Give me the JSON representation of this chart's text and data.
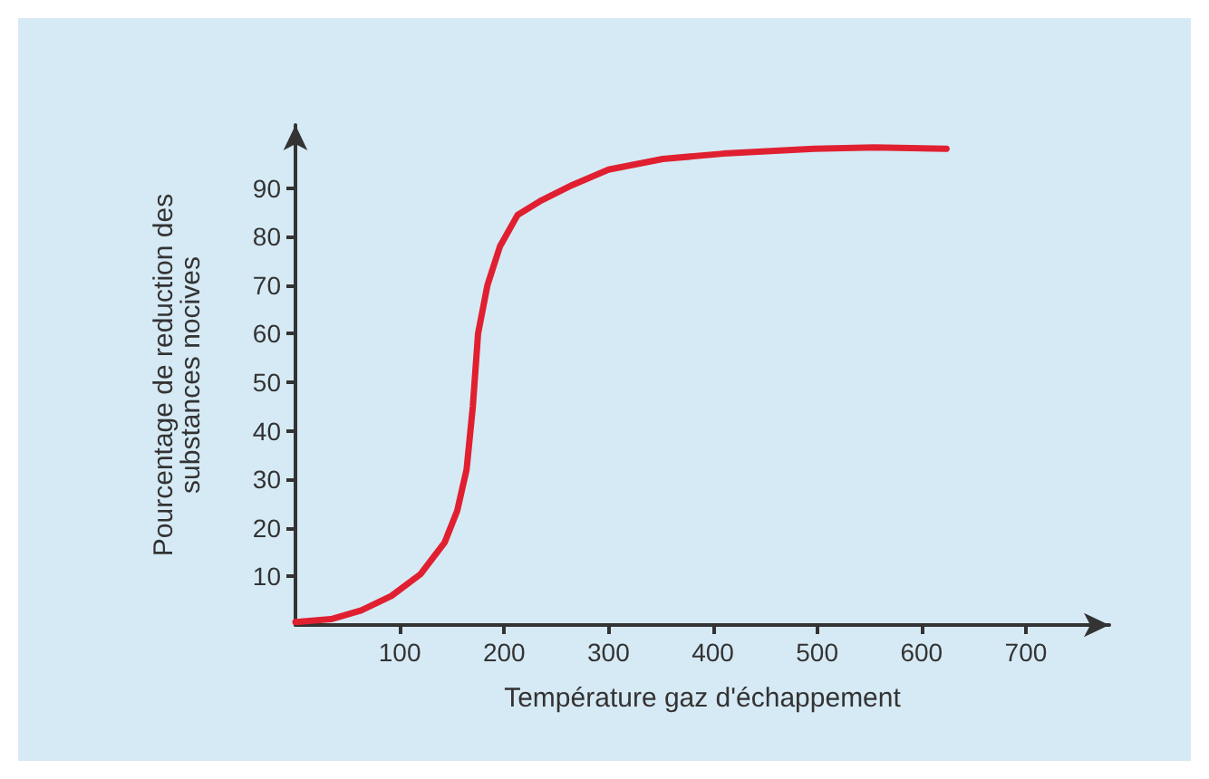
{
  "chart_data": {
    "type": "line",
    "xlabel": "Température gaz d'échappement",
    "ylabel": "Pourcentage de reduction des\nsubstances nocives",
    "x": [
      0,
      34,
      63,
      92,
      120,
      143,
      155,
      164,
      170,
      175,
      184,
      196,
      213,
      236,
      265,
      300,
      352,
      410,
      497,
      555,
      624
    ],
    "series": [
      {
        "color": "#e02030",
        "values": [
          0.6,
          1.2,
          3,
          6,
          10.5,
          17,
          23.5,
          32,
          45,
          60,
          70,
          78,
          84.5,
          87.5,
          90.6,
          93.8,
          96,
          97.1,
          98.1,
          98.4,
          98.1
        ]
      }
    ],
    "xlim": [
      0,
      780
    ],
    "xticks": [
      100,
      200,
      300,
      400,
      500,
      600,
      700
    ],
    "ylim": [
      0,
      103
    ],
    "yticks": [
      10,
      20,
      30,
      40,
      50,
      60,
      70,
      80,
      90
    ],
    "grid": false,
    "marker": "none",
    "line_style": "solid"
  }
}
